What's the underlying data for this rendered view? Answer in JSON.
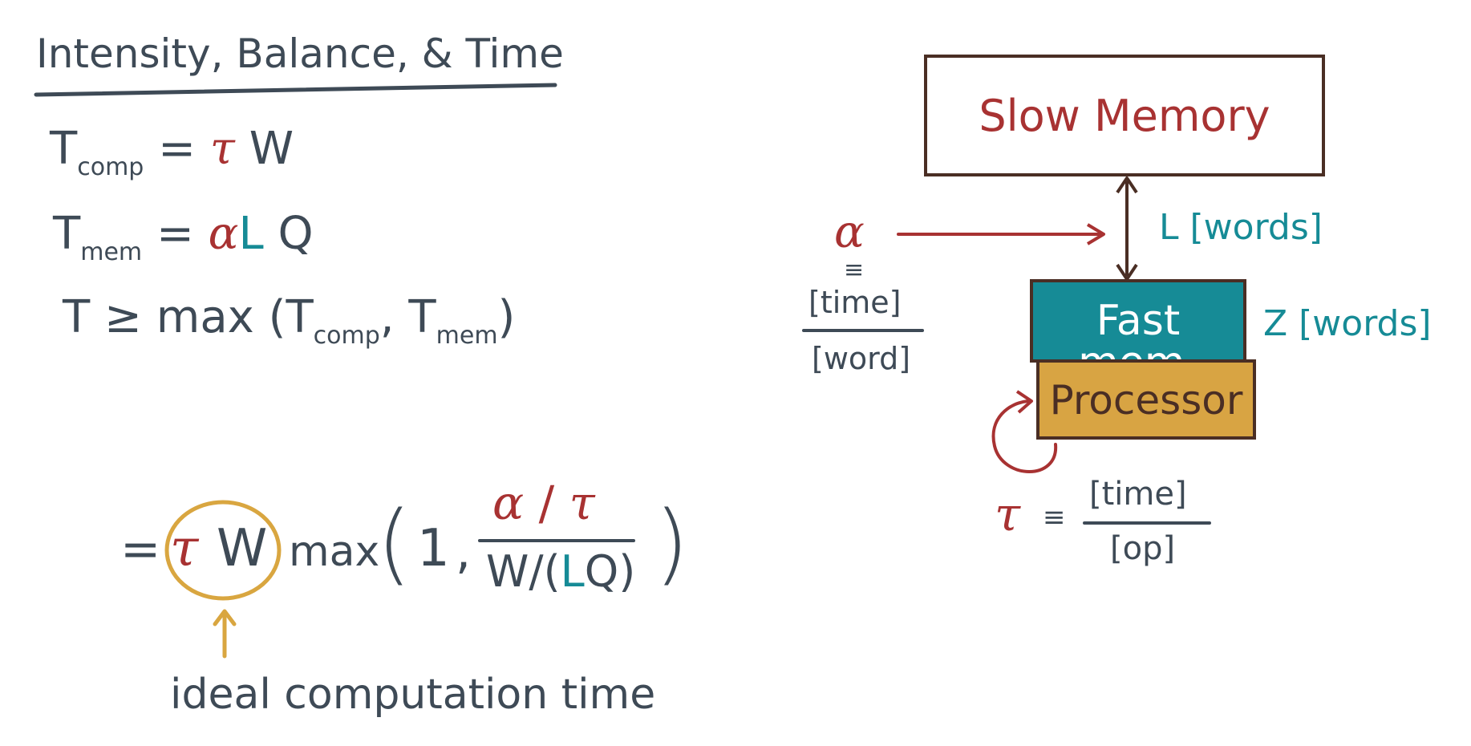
{
  "title": "Intensity, Balance, & Time",
  "eq_comp": {
    "T": "T",
    "sub": "comp",
    "eq": "=",
    "tau": "τ",
    "W": "W"
  },
  "eq_mem": {
    "T": "T",
    "sub": "mem",
    "eq": "=",
    "alpha": "α",
    "L": "L",
    "Q": "Q"
  },
  "eq_bound": {
    "T": "T",
    "geq": "≥",
    "max": "max",
    "lp": "(",
    "T1": "T",
    "sub1": "comp",
    "comma": ",",
    "T2": "T",
    "sub2": "mem",
    "rp": ")"
  },
  "eq_expand": {
    "eq": "=",
    "tau": "τ",
    "W": "W",
    "max": "max",
    "lp": "(",
    "one": "1",
    "comma": ",",
    "alpha": "α",
    "slash": "/",
    "tau2": "τ",
    "den_pre": "W/(",
    "den_L": "L",
    "den_Q": "Q",
    "den_post": ")",
    "rp": ")"
  },
  "ideal_label": "ideal computation time",
  "diagram": {
    "slow_memory": "Slow Memory",
    "fast_memory": "Fast mem.",
    "processor": "Processor",
    "L_label": "L [words]",
    "Z_label": "Z [words]",
    "alpha": "α",
    "alpha_eq": "≡",
    "alpha_num": "[time]",
    "alpha_den": "[word]",
    "tau": "τ",
    "tau_eq": "≡",
    "tau_num": "[time]",
    "tau_den": "[op]"
  },
  "colors": {
    "ink": "#3e4a56",
    "red": "#a83232",
    "teal": "#168b96",
    "gold": "#d9a640",
    "brown": "#4a2e24",
    "fast_fill": "#168b96",
    "proc_fill": "#d8a443"
  }
}
